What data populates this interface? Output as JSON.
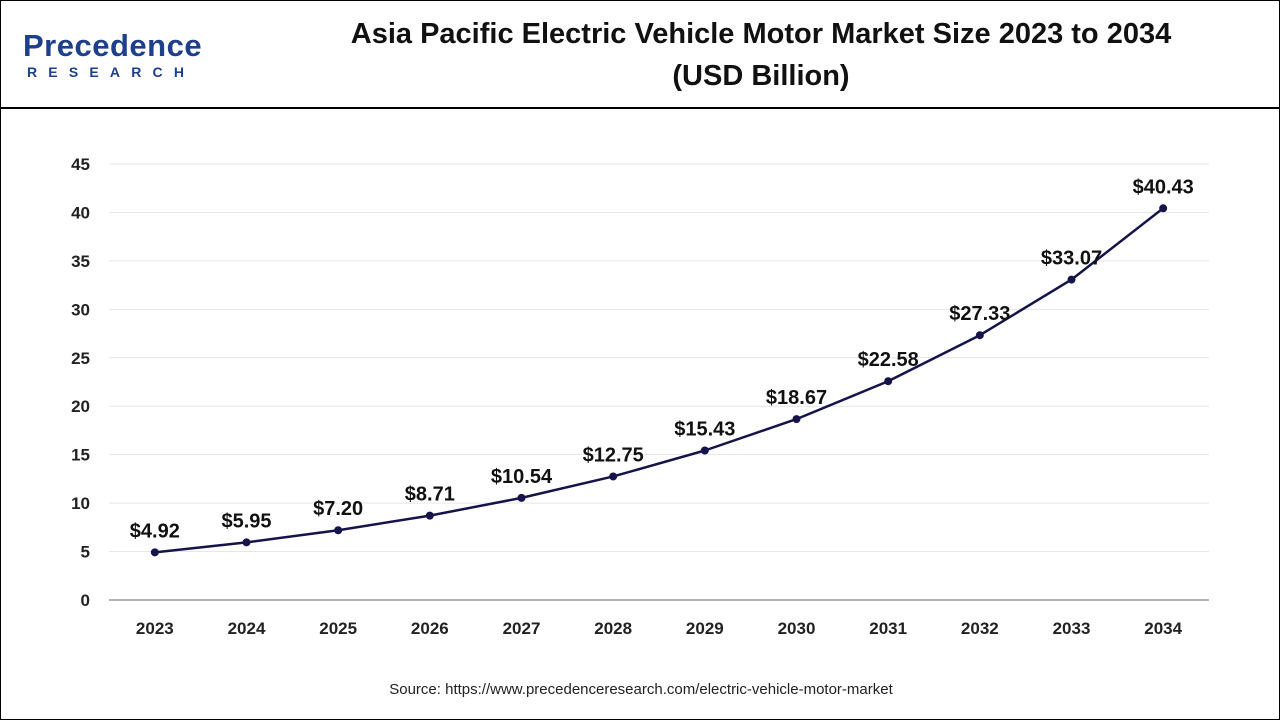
{
  "header": {
    "logo_text": "Precedence",
    "logo_subtext": "RESEARCH",
    "title_line1": "Asia Pacific Electric Vehicle Motor Market Size 2023 to 2034",
    "title_line2": "(USD Billion)"
  },
  "footer": {
    "source": "Source: https://www.precedenceresearch.com/electric-vehicle-motor-market"
  },
  "colors": {
    "line": "#14144a",
    "grid": "#e6e6e6",
    "brand": "#1d3f8c"
  },
  "chart_data": {
    "type": "line",
    "title": "Asia Pacific Electric Vehicle Motor Market Size 2023 to 2034 (USD Billion)",
    "xlabel": "",
    "ylabel": "",
    "categories": [
      "2023",
      "2024",
      "2025",
      "2026",
      "2027",
      "2028",
      "2029",
      "2030",
      "2031",
      "2032",
      "2033",
      "2034"
    ],
    "values": [
      4.92,
      5.95,
      7.2,
      8.71,
      10.54,
      12.75,
      15.43,
      18.67,
      22.58,
      27.33,
      33.07,
      40.43
    ],
    "data_labels": [
      "$4.92",
      "$5.95",
      "$7.20",
      "$8.71",
      "$10.54",
      "$12.75",
      "$15.43",
      "$18.67",
      "$22.58",
      "$27.33",
      "$33.07",
      "$40.43"
    ],
    "yticks": [
      0,
      5,
      10,
      15,
      20,
      25,
      30,
      35,
      40,
      45
    ],
    "ylim": [
      0,
      45
    ],
    "grid": true,
    "legend": "none"
  }
}
